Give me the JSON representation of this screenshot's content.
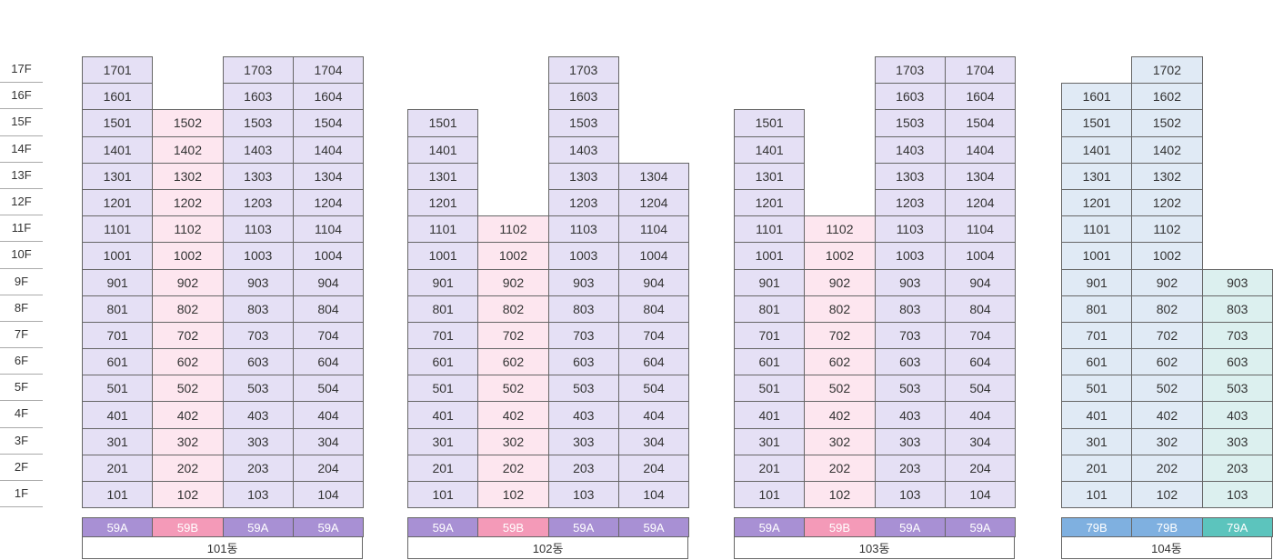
{
  "floors": [
    "17F",
    "16F",
    "15F",
    "14F",
    "13F",
    "12F",
    "11F",
    "10F",
    "9F",
    "8F",
    "7F",
    "6F",
    "5F",
    "4F",
    "3F",
    "2F",
    "1F"
  ],
  "colors": {
    "cell_purple": "#e5e0f5",
    "cell_pink": "#fde6ef",
    "cell_blue": "#e0eaf5",
    "cell_teal": "#dcf0ef",
    "type_59A": "#a890d4",
    "type_59B": "#f49ab8",
    "type_79B": "#7fb0e0",
    "type_79A": "#5cc4bd"
  },
  "buildings": [
    {
      "label": "101동",
      "lines": [
        {
          "line": "01",
          "type": "59A",
          "top": 17,
          "tone": "purple"
        },
        {
          "line": "02",
          "type": "59B",
          "top": 15,
          "tone": "pink"
        },
        {
          "line": "03",
          "type": "59A",
          "top": 17,
          "tone": "purple"
        },
        {
          "line": "04",
          "type": "59A",
          "top": 17,
          "tone": "purple"
        }
      ]
    },
    {
      "label": "102동",
      "lines": [
        {
          "line": "01",
          "type": "59A",
          "top": 15,
          "tone": "purple"
        },
        {
          "line": "02",
          "type": "59B",
          "top": 11,
          "tone": "pink"
        },
        {
          "line": "03",
          "type": "59A",
          "top": 17,
          "tone": "purple"
        },
        {
          "line": "04",
          "type": "59A",
          "top": 13,
          "tone": "purple"
        }
      ]
    },
    {
      "label": "103동",
      "lines": [
        {
          "line": "01",
          "type": "59A",
          "top": 15,
          "tone": "purple"
        },
        {
          "line": "02",
          "type": "59B",
          "top": 11,
          "tone": "pink"
        },
        {
          "line": "03",
          "type": "59A",
          "top": 17,
          "tone": "purple"
        },
        {
          "line": "04",
          "type": "59A",
          "top": 17,
          "tone": "purple"
        }
      ]
    },
    {
      "label": "104동",
      "lines": [
        {
          "line": "01",
          "type": "79B",
          "top": 16,
          "tone": "blue"
        },
        {
          "line": "02",
          "type": "79B",
          "top": 17,
          "tone": "blue"
        },
        {
          "line": "03",
          "type": "79A",
          "top": 9,
          "tone": "teal"
        }
      ]
    }
  ]
}
